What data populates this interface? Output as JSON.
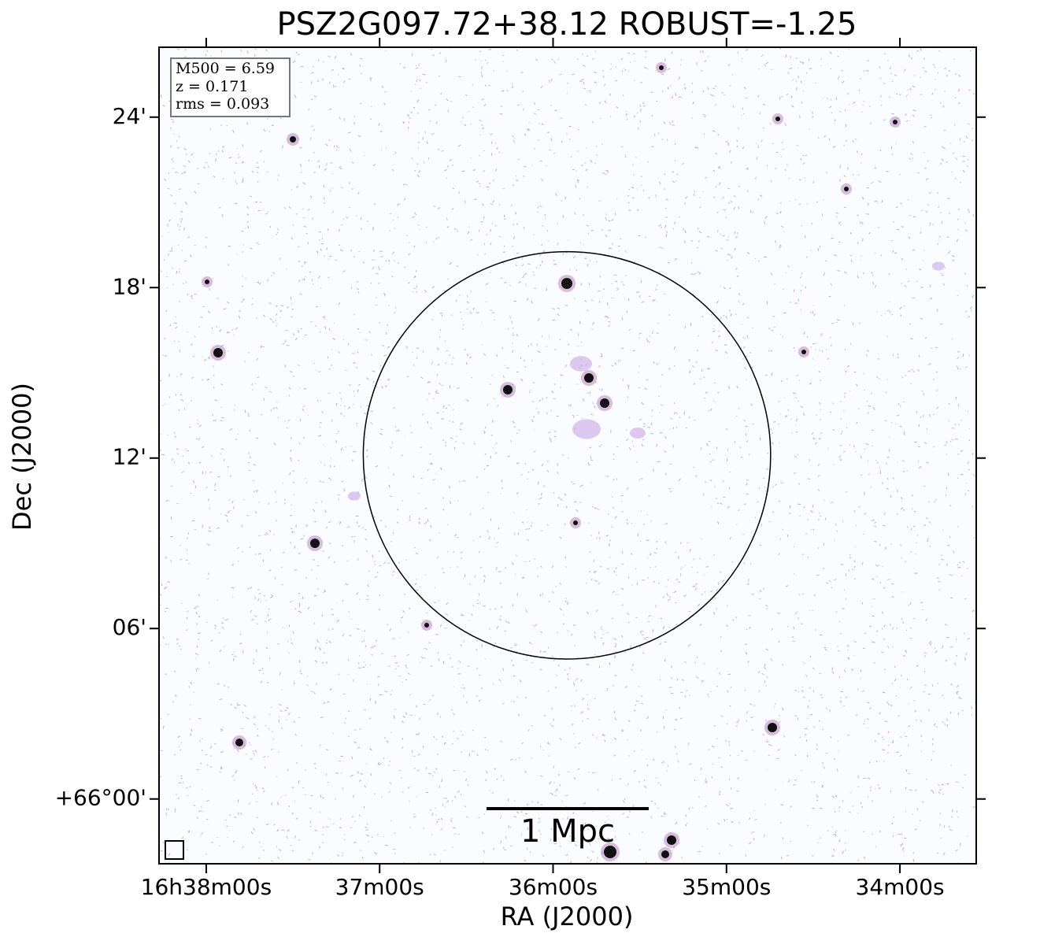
{
  "chart_data": {
    "type": "image",
    "title": "PSZ2G097.72+38.12 ROBUST=-1.25",
    "xlabel": "RA (J2000)",
    "ylabel": "Dec (J2000)",
    "xlim": [
      249.568,
      248.39
    ],
    "ylim": [
      65.962,
      66.441
    ],
    "xticks": [
      {
        "value": 249.5,
        "label": "16h38m00s"
      },
      {
        "value": 249.25,
        "label": "37m00s"
      },
      {
        "value": 249.0,
        "label": "36m00s"
      },
      {
        "value": 248.75,
        "label": "35m00s"
      },
      {
        "value": 248.5,
        "label": "34m00s"
      }
    ],
    "yticks": [
      {
        "value": 66.0,
        "label": "+66°00'"
      },
      {
        "value": 66.1,
        "label": "06'"
      },
      {
        "value": 66.2,
        "label": "12'"
      },
      {
        "value": 66.3,
        "label": "18'"
      },
      {
        "value": 66.4,
        "label": "24'"
      }
    ],
    "info_box": [
      "M500 = 6.59",
      "z = 0.171",
      "rms = 0.093"
    ],
    "circle": {
      "ra": 248.98,
      "dec": 66.2016,
      "radius": 0.1195
    },
    "scale_bar_label": "1 Mpc"
  }
}
